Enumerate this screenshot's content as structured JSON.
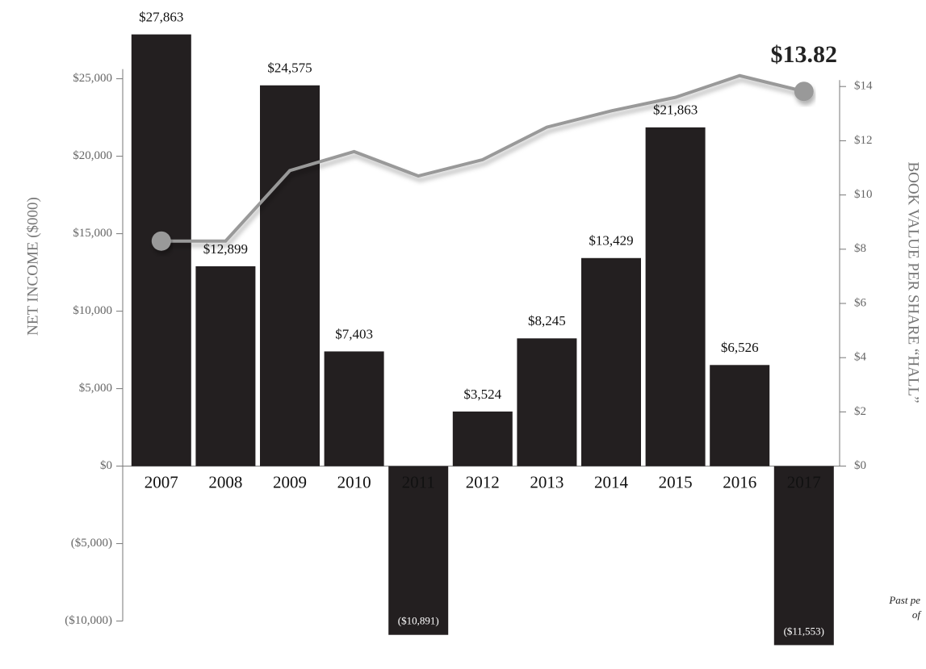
{
  "chart_data": {
    "type": "bar",
    "categories": [
      "2007",
      "2008",
      "2009",
      "2010",
      "2011",
      "2012",
      "2013",
      "2014",
      "2015",
      "2016",
      "2017"
    ],
    "series": [
      {
        "name": "Net Income",
        "type": "bar",
        "color": "#231f20",
        "values": [
          27863,
          12899,
          24575,
          7403,
          -10891,
          3524,
          8245,
          13429,
          21863,
          6526,
          -11553
        ],
        "value_labels": [
          "$27,863",
          "$12,899",
          "$24,575",
          "$7,403",
          "($10,891)",
          "$3,524",
          "$8,245",
          "$13,429",
          "$21,863",
          "$6,526",
          "($11,553)"
        ]
      },
      {
        "name": "Book Value per Share",
        "type": "line",
        "axis": "y2",
        "color": "#999999",
        "values": [
          8.3,
          8.3,
          10.9,
          11.6,
          10.7,
          11.3,
          12.5,
          13.1,
          13.6,
          14.4,
          13.82
        ],
        "value_labels": [
          null,
          null,
          null,
          null,
          null,
          null,
          null,
          null,
          null,
          null,
          "$13.82"
        ]
      }
    ],
    "y_label": "NET INCOME ($000)",
    "y2_label": "BOOK VALUE PER SHARE “HALL”",
    "ylim": [
      -12000,
      28000
    ],
    "yticks": [
      {
        "value": -10000,
        "label": "($10,000)"
      },
      {
        "value": -5000,
        "label": "($5,000)"
      },
      {
        "value": 0,
        "label": "$0"
      },
      {
        "value": 5000,
        "label": "$5,000"
      },
      {
        "value": 10000,
        "label": "$10,000"
      },
      {
        "value": 15000,
        "label": "$15,000"
      },
      {
        "value": 20000,
        "label": "$20,000"
      },
      {
        "value": 25000,
        "label": "$25,000"
      }
    ],
    "y2lim": [
      0,
      16
    ],
    "y2ticks": [
      {
        "value": 0,
        "label": "$0"
      },
      {
        "value": 2,
        "label": "$2"
      },
      {
        "value": 4,
        "label": "$4"
      },
      {
        "value": 6,
        "label": "$6"
      },
      {
        "value": 8,
        "label": "$8"
      },
      {
        "value": 10,
        "label": "$10"
      },
      {
        "value": 12,
        "label": "$12"
      },
      {
        "value": 14,
        "label": "$14"
      }
    ],
    "footnote": [
      "Past pe",
      "of"
    ]
  }
}
